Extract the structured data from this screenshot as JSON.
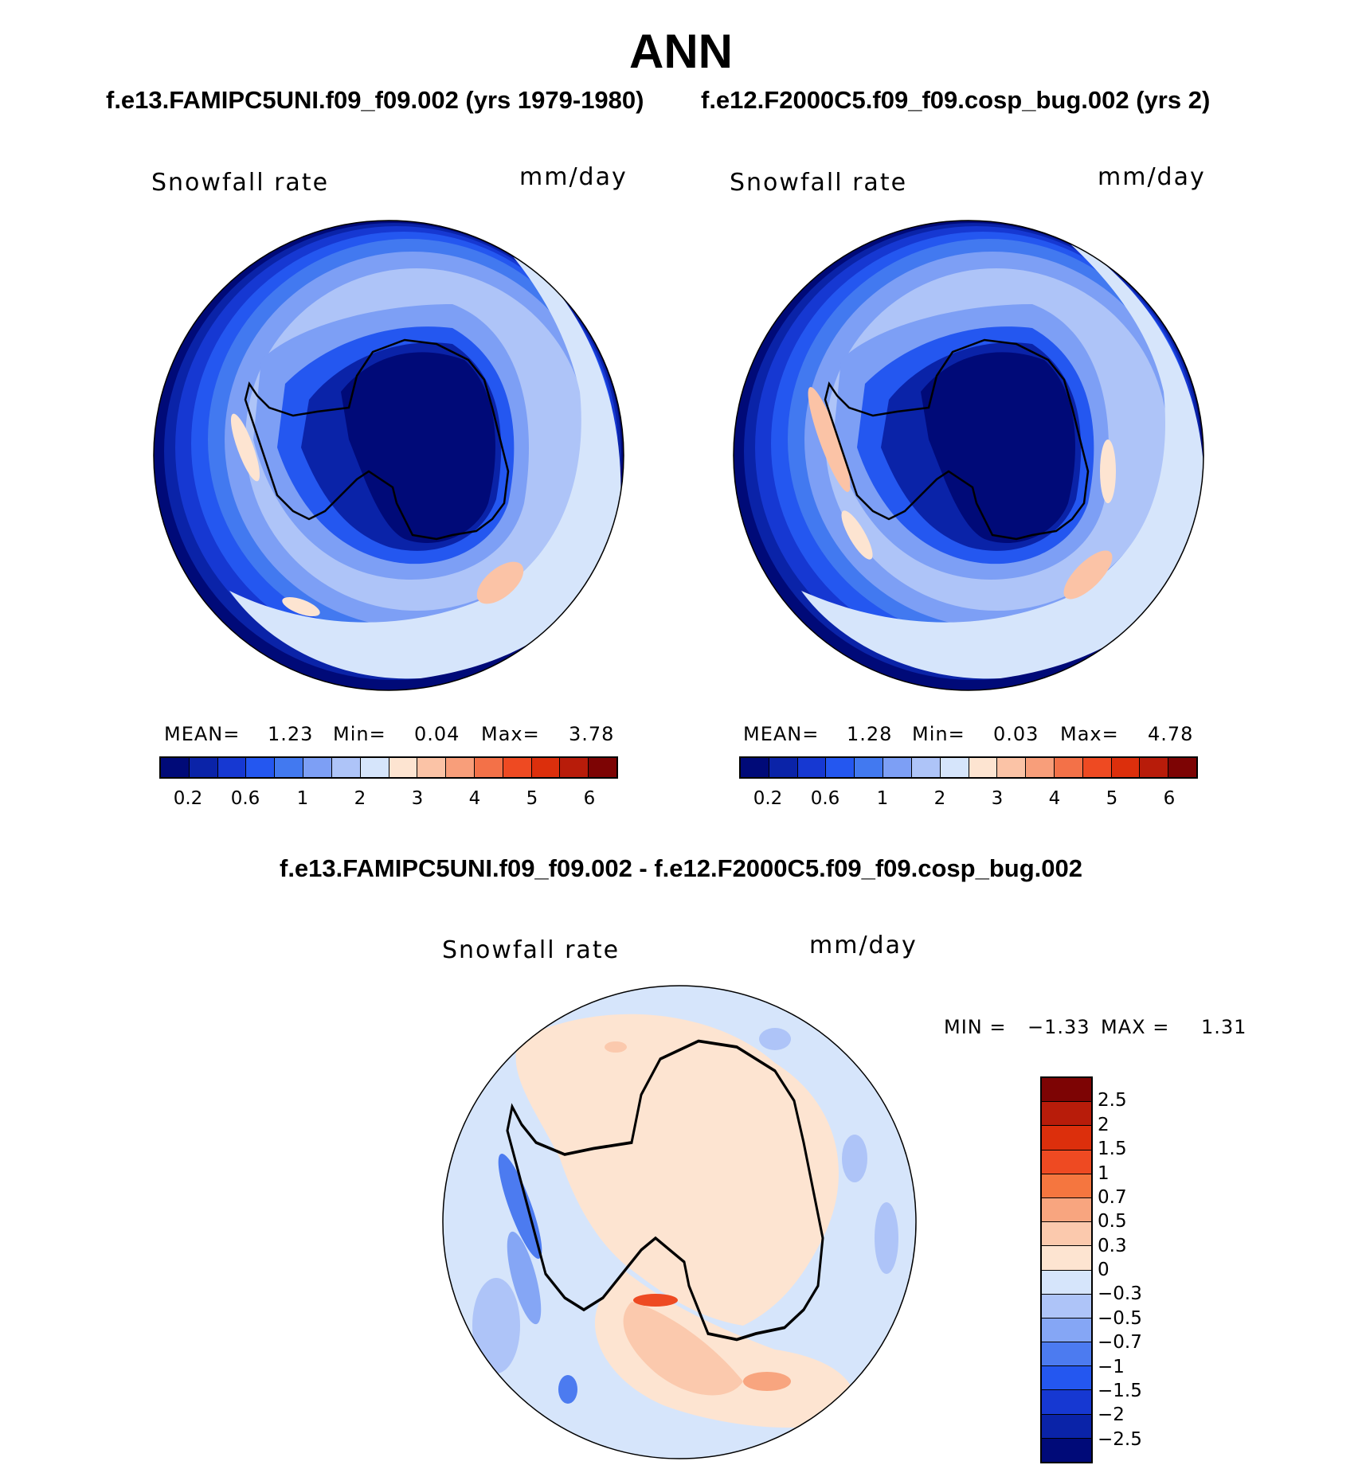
{
  "title": "ANN",
  "case1_title": "f.e13.FAMIPC5UNI.f09_f09.002 (yrs 1979-1980)",
  "case2_title": "f.e12.F2000C5.f09_f09.cosp_bug.002 (yrs 2)",
  "diff_title": "f.e13.FAMIPC5UNI.f09_f09.002 - f.e12.F2000C5.f09_f09.cosp_bug.002",
  "panels": {
    "left": {
      "variable": "Snowfall rate",
      "units": "mm/day",
      "mean_label": "MEAN=",
      "mean": "1.23",
      "min_label": "Min=",
      "min": "0.04",
      "max_label": "Max=",
      "max": "3.78"
    },
    "right": {
      "variable": "Snowfall rate",
      "units": "mm/day",
      "mean_label": "MEAN=",
      "mean": "1.28",
      "min_label": "Min=",
      "min": "0.03",
      "max_label": "Max=",
      "max": "4.78"
    },
    "diff": {
      "variable": "Snowfall rate",
      "units": "mm/day",
      "min_label": "MIN =",
      "min": "−1.33",
      "max_label": "MAX =",
      "max": "1.31"
    }
  },
  "colorbar_abs": {
    "colors": [
      "#000a78",
      "#0a23a8",
      "#1638d2",
      "#2457f0",
      "#4279f0",
      "#7d9ff5",
      "#aec4f8",
      "#d6e5fb",
      "#fde4d1",
      "#fbc3a6",
      "#f89e7a",
      "#f37148",
      "#ee4a22",
      "#dc2f0c",
      "#b81c0a",
      "#7d0404"
    ],
    "ticks": [
      "0.2",
      "0.6",
      "1",
      "2",
      "3",
      "4",
      "5",
      "6"
    ]
  },
  "colorbar_diff": {
    "colors": [
      "#7d0404",
      "#b81c0a",
      "#dc2f0c",
      "#ee4a22",
      "#f5763f",
      "#f8a57f",
      "#fbc9ad",
      "#fde4d1",
      "#d6e5fb",
      "#aec4f8",
      "#85a6f5",
      "#4c7bf0",
      "#2457f0",
      "#1638d2",
      "#0a23a8",
      "#000a78"
    ],
    "ticks": [
      "2.5",
      "2",
      "1.5",
      "1",
      "0.7",
      "0.5",
      "0.3",
      "0",
      "−0.3",
      "−0.5",
      "−0.7",
      "−1",
      "−1.5",
      "−2",
      "−2.5"
    ]
  }
}
